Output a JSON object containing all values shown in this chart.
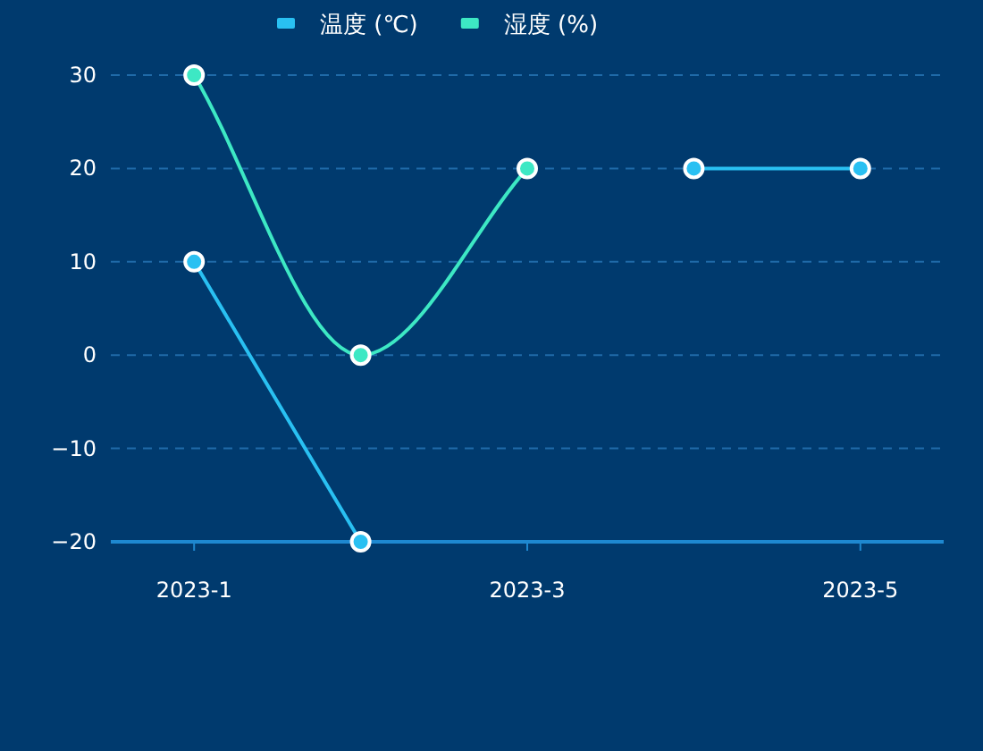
{
  "chart_data": {
    "type": "line",
    "categories": [
      "2023-1",
      null,
      "2023-3",
      null,
      "2023-5"
    ],
    "series": [
      {
        "name": "温度 (℃)",
        "color": "#29c0f2",
        "values": [
          10,
          -20,
          null,
          20,
          20
        ]
      },
      {
        "name": "湿度 (%)",
        "color": "#3de8c4",
        "values": [
          30,
          0,
          20,
          null,
          null
        ]
      }
    ],
    "ylim": [
      -20,
      30
    ],
    "yticks": [
      -20,
      -10,
      0,
      10,
      20,
      30
    ],
    "grid": "y",
    "legend": "top",
    "marker": "circle"
  }
}
